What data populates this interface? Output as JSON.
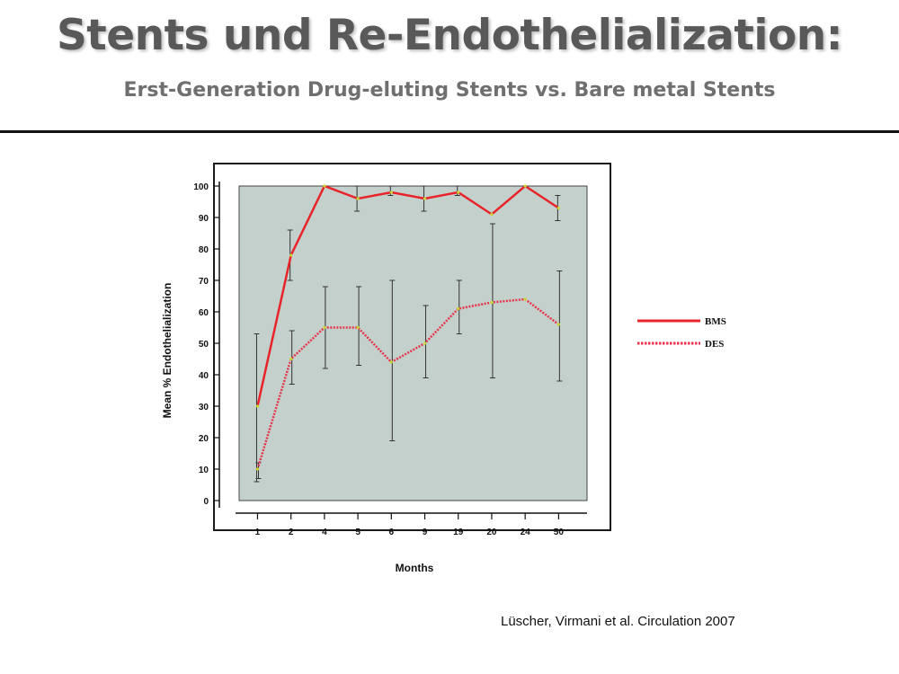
{
  "slide": {
    "title": "Stents und Re-Endothelialization:",
    "subtitle": "Erst-Generation Drug-eluting Stents vs. Bare metal Stents",
    "citation": "Lüscher, Virmani et al. Circulation 2007"
  },
  "colors": {
    "plot_background": "#c3d0cc",
    "bms": "#e8232a",
    "des": "#e8334a",
    "error_bar": "#333333",
    "marker": "#c8d830"
  },
  "chart_data": {
    "type": "line",
    "categories": [
      "1",
      "2",
      "4",
      "5",
      "6",
      "9",
      "19",
      "20",
      "24",
      "50"
    ],
    "xlabel": "Months",
    "ylabel": "Mean % Endothelialization",
    "ylim": [
      0,
      100
    ],
    "yticks": [
      0,
      10,
      20,
      30,
      40,
      50,
      60,
      70,
      80,
      90,
      100
    ],
    "grid": false,
    "legend_position": "right",
    "series": [
      {
        "name": "BMS",
        "style": "solid",
        "values": [
          30,
          78,
          100,
          96,
          98,
          96,
          98,
          91,
          100,
          93
        ],
        "error_low": [
          6,
          70,
          null,
          92,
          97,
          92,
          97,
          null,
          null,
          89
        ],
        "error_high": [
          53,
          86,
          null,
          100,
          100,
          100,
          100,
          null,
          null,
          97
        ]
      },
      {
        "name": "DES",
        "style": "dotted",
        "values": [
          10,
          45,
          55,
          55,
          44,
          50,
          61,
          63,
          64,
          56
        ],
        "error_low": [
          7,
          37,
          42,
          43,
          19,
          39,
          53,
          39,
          null,
          38
        ],
        "error_high": [
          12,
          54,
          68,
          68,
          70,
          62,
          70,
          88,
          null,
          73
        ]
      }
    ]
  }
}
